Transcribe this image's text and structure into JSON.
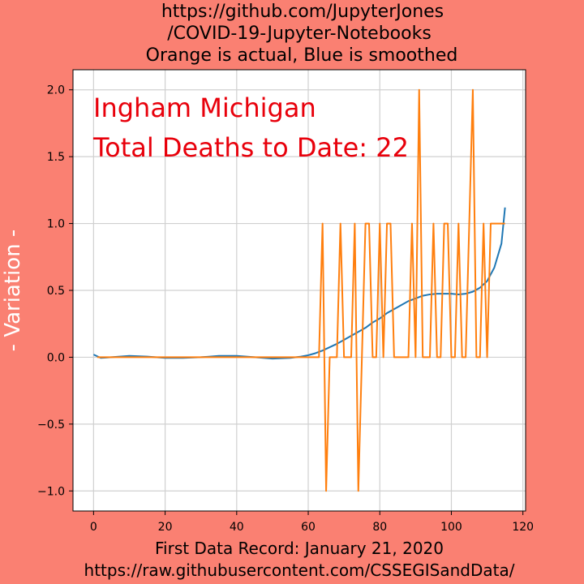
{
  "figure": {
    "title_lines": [
      "https://github.com/JupyterJones",
      "/COVID-19-Jupyter-Notebooks",
      "Orange is actual, Blue is smoothed"
    ],
    "ylabel": "- Variation -",
    "bottom_lines": [
      "First Data Record: January 21, 2020",
      "https://raw.githubusercontent.com/CSSEGISandData/"
    ],
    "annotations": [
      "Ingham Michigan",
      "Total Deaths to Date: 22"
    ],
    "background_color": "#fa8072",
    "annotation_color": "#e8000b"
  },
  "chart_data": {
    "type": "line",
    "xlim": [
      -5.75,
      120.75
    ],
    "ylim": [
      -1.15,
      2.15
    ],
    "xticks": [
      0,
      20,
      40,
      60,
      80,
      100,
      120
    ],
    "yticks": [
      -1.0,
      -0.5,
      0.0,
      0.5,
      1.0,
      1.5,
      2.0
    ],
    "ytick_labels": [
      "−1.0",
      "−0.5",
      "0.0",
      "0.5",
      "1.0",
      "1.5",
      "2.0"
    ],
    "grid": true,
    "series": [
      {
        "color": "#1f77b4",
        "x": [
          0,
          2,
          5,
          10,
          15,
          20,
          25,
          30,
          35,
          40,
          45,
          50,
          55,
          58,
          60,
          62,
          64,
          66,
          68,
          70,
          72,
          74,
          76,
          78,
          80,
          82,
          84,
          86,
          88,
          90,
          92,
          94,
          96,
          98,
          100,
          102,
          104,
          106,
          108,
          110,
          112,
          114,
          115
        ],
        "y": [
          0.02,
          -0.005,
          0.0,
          0.01,
          0.005,
          -0.005,
          -0.005,
          0.0,
          0.01,
          0.01,
          0.0,
          -0.01,
          -0.005,
          0.005,
          0.015,
          0.03,
          0.05,
          0.075,
          0.1,
          0.13,
          0.16,
          0.19,
          0.22,
          0.26,
          0.29,
          0.33,
          0.36,
          0.39,
          0.42,
          0.44,
          0.46,
          0.47,
          0.475,
          0.475,
          0.475,
          0.47,
          0.475,
          0.49,
          0.52,
          0.57,
          0.67,
          0.85,
          1.12
        ]
      },
      {
        "color": "#ff7f0e",
        "x": [
          1,
          63,
          64,
          65,
          66,
          68,
          69,
          70,
          72,
          73,
          74,
          75,
          76,
          77,
          78,
          79,
          80,
          81,
          82,
          83,
          84,
          85,
          86,
          88,
          89,
          90,
          91,
          92,
          94,
          95,
          96,
          97,
          98,
          99,
          100,
          101,
          102,
          103,
          104,
          105,
          106,
          107,
          108,
          109,
          110,
          111,
          112,
          113,
          114,
          115
        ],
        "y": [
          0,
          0,
          1,
          -1,
          0,
          0,
          1,
          0,
          0,
          1,
          -1,
          0,
          1,
          1,
          0,
          0,
          1,
          0,
          1,
          1,
          0,
          0,
          0,
          0,
          1,
          0,
          2,
          0,
          0,
          1,
          0,
          0,
          1,
          1,
          0,
          0,
          1,
          0,
          0,
          1,
          2,
          0,
          0,
          1,
          0,
          1,
          1,
          1,
          1,
          1
        ]
      }
    ]
  }
}
